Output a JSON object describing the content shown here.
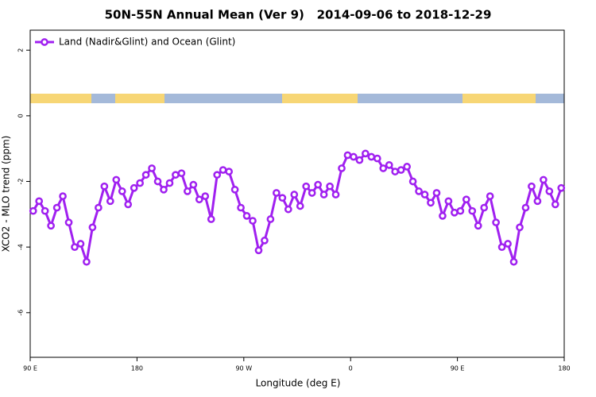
{
  "chart_data": {
    "type": "line",
    "title": "50N-55N Annual Mean (Ver 9)   2014-09-06 to 2018-12-29",
    "xlabel": "Longitude (deg E)",
    "ylabel": "XCO2 - MLO trend (ppm)",
    "xlim": [
      90,
      540
    ],
    "ylim": [
      -7.36,
      2.61
    ],
    "xticks": [
      {
        "value": 90,
        "label": "90 E"
      },
      {
        "value": 180,
        "label": "180"
      },
      {
        "value": 270,
        "label": "90 W"
      },
      {
        "value": 360,
        "label": "0"
      },
      {
        "value": 450,
        "label": "90 E"
      },
      {
        "value": 540,
        "label": "180"
      }
    ],
    "yticks": [
      -6,
      -4,
      -2,
      0,
      2
    ],
    "legend": "top-left",
    "series": [
      {
        "name": "Land (Nadir&Glint) and Ocean (Glint)",
        "color": "#a020f0",
        "x": [
          92.5,
          97.5,
          102.5,
          107.5,
          112.5,
          117.5,
          122.5,
          127.5,
          132.5,
          137.5,
          142.5,
          147.5,
          152.5,
          157.5,
          162.5,
          167.5,
          172.5,
          177.5,
          182.5,
          187.5,
          192.5,
          197.5,
          202.5,
          207.5,
          212.5,
          217.5,
          222.5,
          227.5,
          232.5,
          237.5,
          242.5,
          247.5,
          252.5,
          257.5,
          262.5,
          267.5,
          272.5,
          277.5,
          282.5,
          287.5,
          292.5,
          297.5,
          302.5,
          307.5,
          312.5,
          317.5,
          322.5,
          327.5,
          332.5,
          337.5,
          342.5,
          347.5,
          352.5,
          357.5,
          362.5,
          367.5,
          372.5,
          377.5,
          382.5,
          387.5,
          392.5,
          397.5,
          402.5,
          407.5,
          412.5,
          417.5,
          422.5,
          427.5,
          432.5,
          437.5,
          442.5,
          447.5,
          452.5,
          457.5,
          462.5,
          467.5,
          472.5,
          477.5,
          482.5,
          487.5,
          492.5,
          497.5,
          502.5,
          507.5,
          512.5,
          517.5,
          522.5,
          527.5,
          532.5,
          537.5
        ],
        "values": [
          -2.9,
          -2.6,
          -2.9,
          -3.35,
          -2.8,
          -2.45,
          -3.25,
          -4.0,
          -3.9,
          -4.45,
          -3.4,
          -2.8,
          -2.15,
          -2.6,
          -1.95,
          -2.3,
          -2.7,
          -2.2,
          -2.05,
          -1.8,
          -1.6,
          -2.0,
          -2.25,
          -2.05,
          -1.8,
          -1.75,
          -2.3,
          -2.1,
          -2.55,
          -2.45,
          -3.15,
          -1.8,
          -1.65,
          -1.7,
          -2.25,
          -2.8,
          -3.05,
          -3.2,
          -4.1,
          -3.8,
          -3.15,
          -2.35,
          -2.5,
          -2.85,
          -2.4,
          -2.75,
          -2.15,
          -2.35,
          -2.1,
          -2.4,
          -2.15,
          -2.4,
          -1.6,
          -1.2,
          -1.25,
          -1.35,
          -1.15,
          -1.25,
          -1.3,
          -1.6,
          -1.5,
          -1.7,
          -1.65,
          -1.55,
          -2.0,
          -2.3,
          -2.4,
          -2.65,
          -2.35,
          -3.05,
          -2.6,
          -2.95,
          -2.9,
          -2.55,
          -2.9,
          -3.35,
          -2.8,
          -2.45,
          -3.25,
          -4.0,
          -3.9,
          -4.45,
          -3.4,
          -2.8,
          -2.15,
          -2.6,
          -1.95,
          -2.3,
          -2.7,
          -2.2
        ]
      }
    ]
  }
}
